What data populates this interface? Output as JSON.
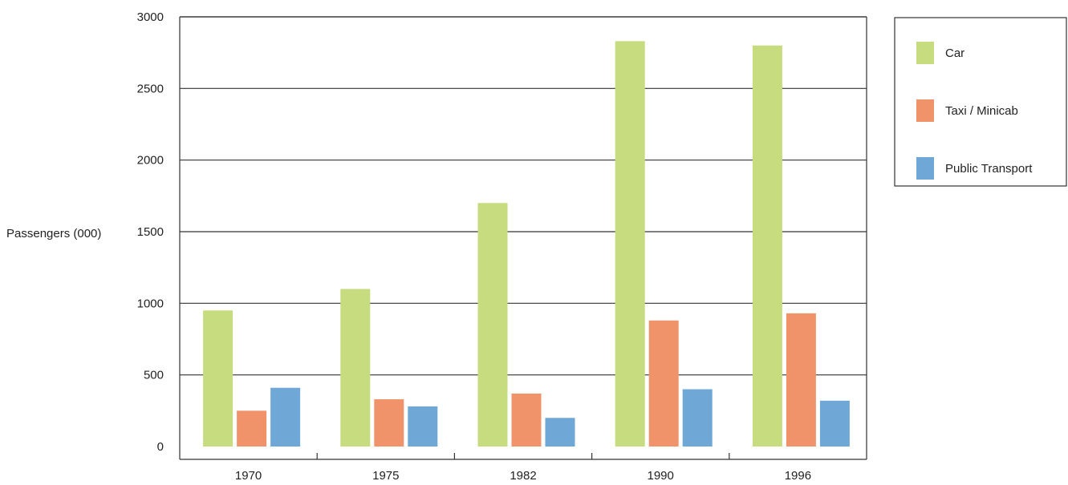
{
  "chart_data": {
    "type": "bar",
    "title": "",
    "xlabel": "",
    "ylabel": "Passengers (000)",
    "ylim": [
      0,
      3000
    ],
    "yticks": [
      0,
      500,
      1000,
      1500,
      2000,
      2500,
      3000
    ],
    "grid": true,
    "legend_position": "top-right",
    "categories": [
      "1970",
      "1975",
      "1982",
      "1990",
      "1996"
    ],
    "series": [
      {
        "name": "Car",
        "color": "#c6dc7f",
        "values": [
          950,
          1100,
          1700,
          2830,
          2800
        ]
      },
      {
        "name": "Taxi / Minicab",
        "color": "#f0936a",
        "values": [
          250,
          330,
          370,
          880,
          930
        ]
      },
      {
        "name": "Public Transport",
        "color": "#6fa7d6",
        "values": [
          410,
          280,
          200,
          400,
          320
        ]
      }
    ]
  }
}
